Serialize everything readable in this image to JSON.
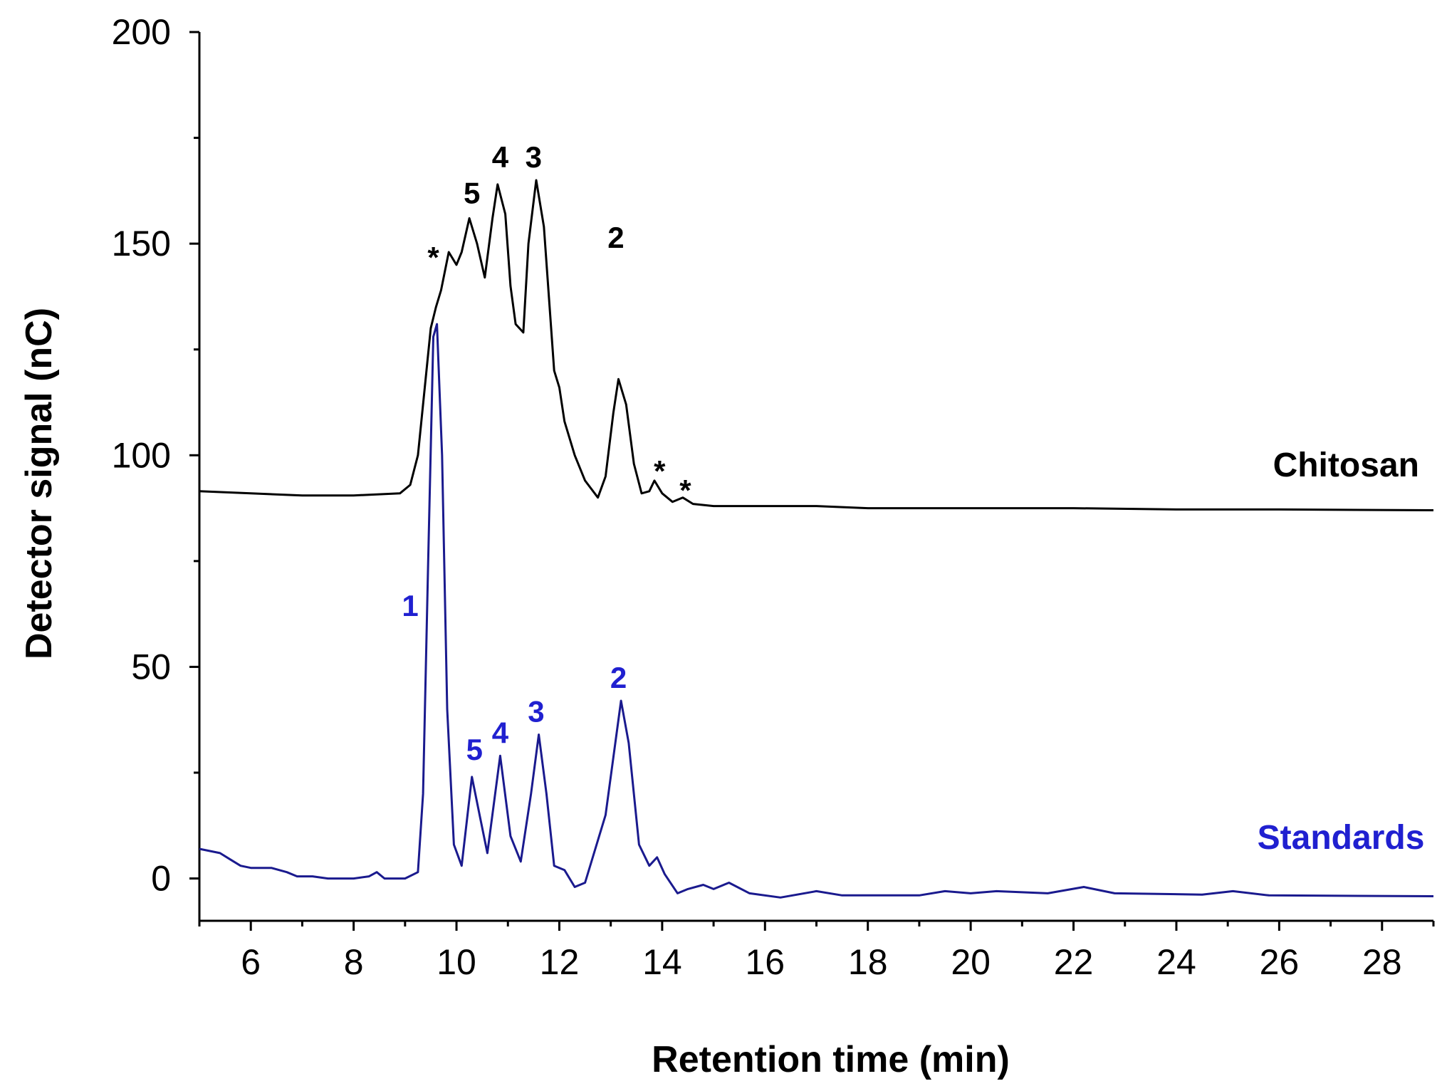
{
  "chart_data": {
    "type": "line",
    "title": "",
    "xlabel": "Retention time (min)",
    "ylabel": "Detector signal (nC)",
    "xlim": [
      5,
      29
    ],
    "ylim": [
      -10,
      200
    ],
    "x_ticks": [
      6,
      8,
      10,
      12,
      14,
      16,
      18,
      20,
      22,
      24,
      26,
      28
    ],
    "y_ticks": [
      0,
      50,
      100,
      150,
      200
    ],
    "grid": false,
    "series": [
      {
        "name": "Chitosan",
        "color": "#000000",
        "label": "Chitosan",
        "label_pos": [
          27.3,
          95
        ],
        "points": [
          [
            5.0,
            91.5
          ],
          [
            6.0,
            91.0
          ],
          [
            7.0,
            90.5
          ],
          [
            8.0,
            90.5
          ],
          [
            8.9,
            91.0
          ],
          [
            9.1,
            93.0
          ],
          [
            9.25,
            100.0
          ],
          [
            9.4,
            118.0
          ],
          [
            9.5,
            130.0
          ],
          [
            9.6,
            135.0
          ],
          [
            9.7,
            139.0
          ],
          [
            9.85,
            148.0
          ],
          [
            10.0,
            145.0
          ],
          [
            10.1,
            148.0
          ],
          [
            10.25,
            156.0
          ],
          [
            10.4,
            150.0
          ],
          [
            10.55,
            142.0
          ],
          [
            10.7,
            156.0
          ],
          [
            10.8,
            164.0
          ],
          [
            10.95,
            157.0
          ],
          [
            11.05,
            140.0
          ],
          [
            11.15,
            131.0
          ],
          [
            11.3,
            129.0
          ],
          [
            11.4,
            150.0
          ],
          [
            11.55,
            165.0
          ],
          [
            11.7,
            154.0
          ],
          [
            11.8,
            137.0
          ],
          [
            11.9,
            120.0
          ],
          [
            12.0,
            116.0
          ],
          [
            12.1,
            108.0
          ],
          [
            12.3,
            100.0
          ],
          [
            12.5,
            94.0
          ],
          [
            12.75,
            90.0
          ],
          [
            12.9,
            95.0
          ],
          [
            13.05,
            110.0
          ],
          [
            13.15,
            118.0
          ],
          [
            13.3,
            112.0
          ],
          [
            13.45,
            98.0
          ],
          [
            13.6,
            91.0
          ],
          [
            13.75,
            91.5
          ],
          [
            13.85,
            94.0
          ],
          [
            14.0,
            91.0
          ],
          [
            14.2,
            89.0
          ],
          [
            14.4,
            90.0
          ],
          [
            14.6,
            88.5
          ],
          [
            15.0,
            88.0
          ],
          [
            16.0,
            88.0
          ],
          [
            17.0,
            88.0
          ],
          [
            18.0,
            87.5
          ],
          [
            20.0,
            87.5
          ],
          [
            22.0,
            87.5
          ],
          [
            24.0,
            87.2
          ],
          [
            26.0,
            87.2
          ],
          [
            29.0,
            87.0
          ]
        ]
      },
      {
        "name": "Standards",
        "color": "#1a1a8e",
        "label": "Standards",
        "label_pos": [
          27.2,
          7
        ],
        "points": [
          [
            5.0,
            7.0
          ],
          [
            5.4,
            6.0
          ],
          [
            5.6,
            4.5
          ],
          [
            5.8,
            3.0
          ],
          [
            6.0,
            2.5
          ],
          [
            6.4,
            2.5
          ],
          [
            6.7,
            1.5
          ],
          [
            6.9,
            0.5
          ],
          [
            7.2,
            0.5
          ],
          [
            7.5,
            0.0
          ],
          [
            8.0,
            0.0
          ],
          [
            8.3,
            0.5
          ],
          [
            8.45,
            1.5
          ],
          [
            8.6,
            0.0
          ],
          [
            9.0,
            0.0
          ],
          [
            9.25,
            1.5
          ],
          [
            9.35,
            20.0
          ],
          [
            9.45,
            75.0
          ],
          [
            9.55,
            128.0
          ],
          [
            9.62,
            131.0
          ],
          [
            9.72,
            100.0
          ],
          [
            9.82,
            40.0
          ],
          [
            9.95,
            8.0
          ],
          [
            10.1,
            3.0
          ],
          [
            10.3,
            24.0
          ],
          [
            10.45,
            15.0
          ],
          [
            10.6,
            6.0
          ],
          [
            10.85,
            29.0
          ],
          [
            11.05,
            10.0
          ],
          [
            11.25,
            4.0
          ],
          [
            11.45,
            20.0
          ],
          [
            11.6,
            34.0
          ],
          [
            11.75,
            20.0
          ],
          [
            11.9,
            3.0
          ],
          [
            12.1,
            2.0
          ],
          [
            12.3,
            -2.0
          ],
          [
            12.5,
            -1.0
          ],
          [
            12.9,
            15.0
          ],
          [
            13.2,
            42.0
          ],
          [
            13.35,
            32.0
          ],
          [
            13.55,
            8.0
          ],
          [
            13.75,
            3.0
          ],
          [
            13.9,
            5.0
          ],
          [
            14.05,
            1.0
          ],
          [
            14.3,
            -3.5
          ],
          [
            14.5,
            -2.5
          ],
          [
            14.8,
            -1.5
          ],
          [
            15.0,
            -2.5
          ],
          [
            15.3,
            -1.0
          ],
          [
            15.7,
            -3.5
          ],
          [
            16.3,
            -4.5
          ],
          [
            17.0,
            -3.0
          ],
          [
            17.5,
            -4.0
          ],
          [
            19.0,
            -4.0
          ],
          [
            19.5,
            -3.0
          ],
          [
            20.0,
            -3.5
          ],
          [
            20.5,
            -3.0
          ],
          [
            21.5,
            -3.5
          ],
          [
            22.2,
            -2.0
          ],
          [
            22.8,
            -3.5
          ],
          [
            24.5,
            -3.8
          ],
          [
            25.1,
            -3.0
          ],
          [
            25.8,
            -4.0
          ],
          [
            29.0,
            -4.2
          ]
        ]
      }
    ],
    "annotations": [
      {
        "text": "*",
        "x": 9.55,
        "y": 148.0,
        "color": "#000000",
        "size": "large"
      },
      {
        "text": "5",
        "x": 10.3,
        "y": 159.5,
        "color": "#000000"
      },
      {
        "text": "4",
        "x": 10.85,
        "y": 168.0,
        "color": "#000000"
      },
      {
        "text": "3",
        "x": 11.5,
        "y": 168.0,
        "color": "#000000"
      },
      {
        "text": "2",
        "x": 13.1,
        "y": 149.0,
        "color": "#000000"
      },
      {
        "text": "*",
        "x": 13.95,
        "y": 97.5,
        "color": "#000000",
        "size": "large"
      },
      {
        "text": "*",
        "x": 14.45,
        "y": 93.0,
        "color": "#000000",
        "size": "large"
      },
      {
        "text": "1",
        "x": 9.1,
        "y": 62.0,
        "color": "#2020d0"
      },
      {
        "text": "5",
        "x": 10.35,
        "y": 28.0,
        "color": "#2020d0"
      },
      {
        "text": "4",
        "x": 10.85,
        "y": 32.0,
        "color": "#2020d0"
      },
      {
        "text": "3",
        "x": 11.55,
        "y": 37.0,
        "color": "#2020d0"
      },
      {
        "text": "2",
        "x": 13.15,
        "y": 45.0,
        "color": "#2020d0"
      }
    ]
  }
}
